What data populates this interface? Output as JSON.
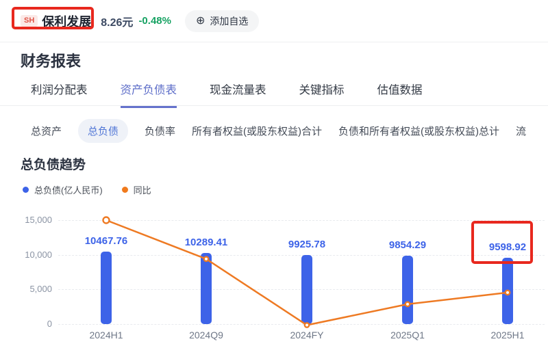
{
  "header": {
    "exchange_badge": "SH",
    "stock_name": "保利发展",
    "price": "8.26元",
    "change": "-0.48%",
    "add_icon": "⊕",
    "add_watchlist_label": "添加自选"
  },
  "page_title": "财务报表",
  "tabs": {
    "items": [
      {
        "label": "利润分配表",
        "active": false
      },
      {
        "label": "资产负债表",
        "active": true
      },
      {
        "label": "现金流量表",
        "active": false
      },
      {
        "label": "关键指标",
        "active": false
      },
      {
        "label": "估值数据",
        "active": false
      }
    ]
  },
  "subtabs": {
    "items": [
      {
        "label": "总资产",
        "active": false
      },
      {
        "label": "总负债",
        "active": true
      },
      {
        "label": "负债率",
        "active": false
      },
      {
        "label": "所有者权益(或股东权益)合计",
        "active": false
      },
      {
        "label": "负债和所有者权益(或股东权益)总计",
        "active": false
      },
      {
        "label": "流",
        "active": false
      }
    ]
  },
  "section_title": "总负债趋势",
  "legend": [
    {
      "label": "总负债(亿人民币)",
      "color": "#3d63e8"
    },
    {
      "label": "同比",
      "color": "#f07a1c"
    }
  ],
  "chart_data": {
    "type": "bar+line",
    "title": "总负债趋势",
    "categories": [
      "2024H1",
      "2024Q9",
      "2024FY",
      "2025Q1",
      "2025H1"
    ],
    "series": [
      {
        "name": "总负债(亿人民币)",
        "type": "bar",
        "color": "#3d63e8",
        "values": [
          10467.76,
          10289.41,
          9925.78,
          9854.29,
          9598.92
        ],
        "labels": [
          "10467.76",
          "10289.41",
          "9925.78",
          "9854.29",
          "9598.92"
        ]
      },
      {
        "name": "同比",
        "type": "line",
        "color": "#ee7a23",
        "values_est_left_axis": [
          15000,
          9400,
          -150,
          2870,
          4550
        ]
      }
    ],
    "ylim": [
      0,
      15000
    ],
    "yticks": [
      0,
      5000,
      10000,
      15000
    ],
    "ytick_labels": [
      "0",
      "5,000",
      "10,000",
      "15,000"
    ],
    "grid": "dashed-horizontal",
    "legend_position": "top-left"
  },
  "annotations": {
    "highlight_color": "#e8281e",
    "boxes": [
      "stock-name",
      "latest-bar-value"
    ]
  }
}
